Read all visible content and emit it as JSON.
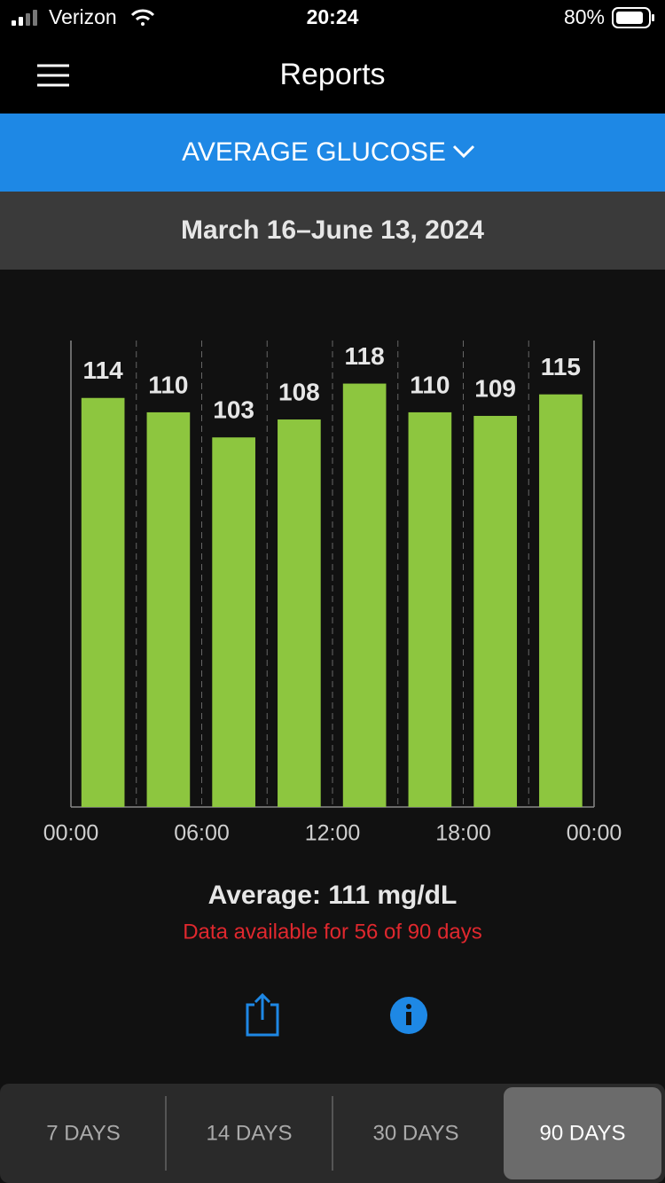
{
  "status": {
    "carrier": "Verizon",
    "time": "20:24",
    "battery": "80%"
  },
  "header": {
    "title": "Reports"
  },
  "report_selector": "AVERAGE GLUCOSE",
  "date_range": "March 16–June 13, 2024",
  "chart_data": {
    "type": "histogram",
    "bins": [
      0,
      3,
      6,
      9,
      12,
      15,
      18,
      21,
      24
    ],
    "values": [
      114,
      110,
      103,
      108,
      118,
      110,
      109,
      115
    ],
    "color": "#8dc63f",
    "ylim": [
      0,
      130
    ],
    "xlim": [
      0,
      24
    ],
    "xticks": [
      {
        "value": 0,
        "label": "00:00"
      },
      {
        "value": 6,
        "label": "06:00"
      },
      {
        "value": 12,
        "label": "12:00"
      },
      {
        "value": 18,
        "label": "18:00"
      },
      {
        "value": 24,
        "label": "00:00"
      }
    ],
    "grid": true
  },
  "summary": {
    "average": "Average: 111 mg/dL",
    "note": "Data available for 56 of 90 days"
  },
  "tabs": [
    "7 DAYS",
    "14 DAYS",
    "30 DAYS",
    "90 DAYS"
  ]
}
